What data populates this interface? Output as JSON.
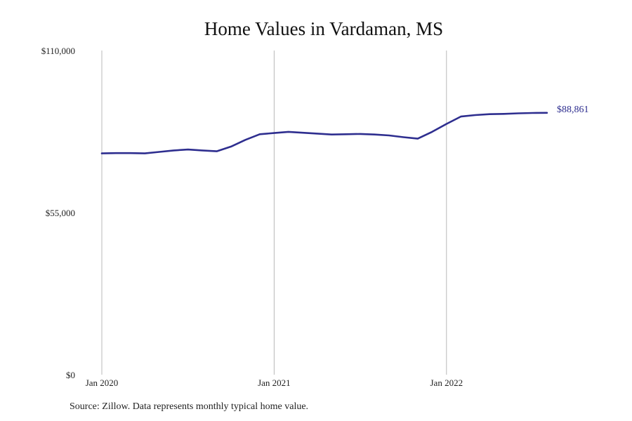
{
  "chart_data": {
    "type": "line",
    "title": "Home Values in Vardaman, MS",
    "xlabel": "",
    "ylabel": "",
    "ylim": [
      0,
      110000
    ],
    "y_ticks": [
      {
        "value": 0,
        "label": "$0"
      },
      {
        "value": 55000,
        "label": "$55,000"
      },
      {
        "value": 110000,
        "label": "$110,000"
      }
    ],
    "x_ticks": [
      {
        "month_index": 0,
        "label": "Jan 2020"
      },
      {
        "month_index": 12,
        "label": "Jan 2021"
      },
      {
        "month_index": 24,
        "label": "Jan 2022"
      }
    ],
    "grid": "vertical at x ticks",
    "line_color": "#2e2e8f",
    "series": [
      {
        "months": [
          "2020-01",
          "2020-02",
          "2020-03",
          "2020-04",
          "2020-05",
          "2020-06",
          "2020-07",
          "2020-08",
          "2020-09",
          "2020-10",
          "2020-11",
          "2020-12",
          "2021-01",
          "2021-02",
          "2021-03",
          "2021-04",
          "2021-05",
          "2021-06",
          "2021-07",
          "2021-08",
          "2021-09",
          "2021-10",
          "2021-11",
          "2021-12",
          "2022-01",
          "2022-02",
          "2022-03",
          "2022-04",
          "2022-05",
          "2022-06",
          "2022-07",
          "2022-08"
        ],
        "values": [
          75100,
          75200,
          75200,
          75100,
          75600,
          76100,
          76400,
          76100,
          75800,
          77400,
          79700,
          81600,
          82000,
          82400,
          82100,
          81800,
          81500,
          81600,
          81700,
          81500,
          81200,
          80600,
          80100,
          82400,
          85100,
          87600,
          88100,
          88400,
          88500,
          88700,
          88800,
          88861
        ]
      }
    ],
    "end_label": "$88,861"
  },
  "source_note": "Source: Zillow. Data represents monthly typical home value."
}
